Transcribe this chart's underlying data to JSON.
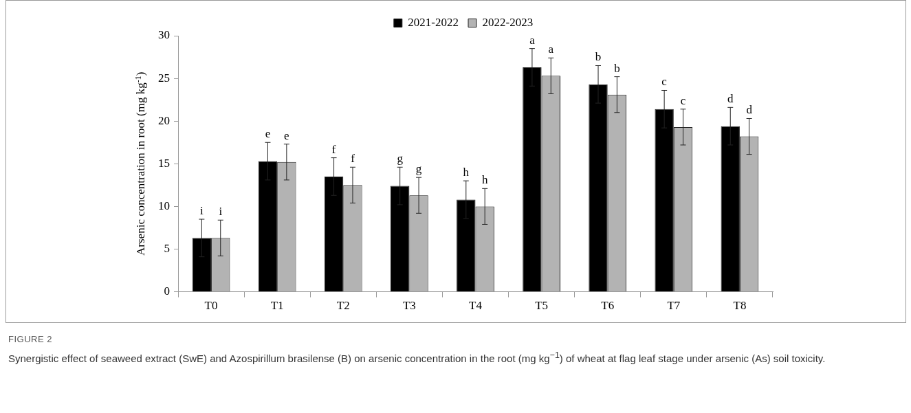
{
  "chart_data": {
    "type": "bar",
    "ylabel": "Arsenic concentration in root (mg kg$^{-1}$)",
    "categories": [
      "T0",
      "T1",
      "T2",
      "T3",
      "T4",
      "T5",
      "T6",
      "T7",
      "T8"
    ],
    "series": [
      {
        "name": "2021-2022",
        "color": "#000000",
        "values": [
          6.3,
          15.3,
          13.5,
          12.4,
          10.8,
          26.3,
          24.3,
          21.4,
          19.4
        ],
        "errors": [
          2.2,
          2.2,
          2.2,
          2.2,
          2.2,
          2.2,
          2.2,
          2.2,
          2.2
        ],
        "value_labels": [
          "i",
          "e",
          "f",
          "g",
          "h",
          "a",
          "b",
          "c",
          "d"
        ]
      },
      {
        "name": "2022-2023",
        "color": "#b3b3b3",
        "values": [
          6.3,
          15.2,
          12.5,
          11.3,
          10.0,
          25.3,
          23.1,
          19.3,
          18.2
        ],
        "errors": [
          2.1,
          2.1,
          2.1,
          2.1,
          2.1,
          2.1,
          2.1,
          2.1,
          2.1
        ],
        "value_labels": [
          "i",
          "e",
          "f",
          "g",
          "h",
          "a",
          "b",
          "c",
          "d"
        ]
      }
    ],
    "ylim": [
      0,
      30
    ],
    "yticks": [
      0,
      5,
      10,
      15,
      20,
      25,
      30
    ],
    "grid": false,
    "legend": "top",
    "annotations": [
      "FIGURE 2",
      "Synergistic effect of seaweed extract (SwE) and Azospirillum brasilense (B) on arsenic concentration in the root (mg kg$^{−1}$) of wheat at flag leaf stage under arsenic (As) soil toxicity."
    ]
  }
}
